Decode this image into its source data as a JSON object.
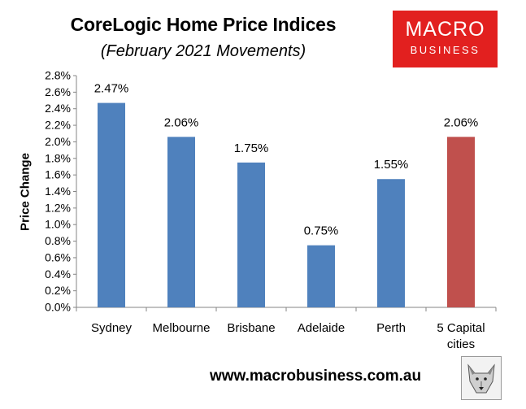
{
  "chart_data": {
    "type": "bar",
    "title": "CoreLogic Home Price Indices",
    "subtitle": "(February 2021 Movements)",
    "xlabel": "",
    "ylabel": "Price Change",
    "categories": [
      "Sydney",
      "Melbourne",
      "Brisbane",
      "Adelaide",
      "Perth",
      "5 Capital cities"
    ],
    "values": [
      2.47,
      2.06,
      1.75,
      0.75,
      1.55,
      2.06
    ],
    "data_labels": [
      "2.47%",
      "2.06%",
      "1.75%",
      "0.75%",
      "1.55%",
      "2.06%"
    ],
    "ylim": [
      0,
      2.8
    ],
    "yticks": [
      "0.0%",
      "0.2%",
      "0.4%",
      "0.6%",
      "0.8%",
      "1.0%",
      "1.2%",
      "1.4%",
      "1.6%",
      "1.8%",
      "2.0%",
      "2.2%",
      "2.4%",
      "2.6%",
      "2.8%"
    ],
    "grid": false,
    "legend": "none",
    "colors": {
      "bar": "#4f81bd",
      "highlight_bar": "#c0504d"
    },
    "highlight_index": 5
  },
  "branding": {
    "logo_line1": "MACRO",
    "logo_line2": "BUSINESS",
    "logo_color": "#e2201f",
    "website": "www.macrobusiness.com.au",
    "mascot_icon": "wolf-icon"
  }
}
